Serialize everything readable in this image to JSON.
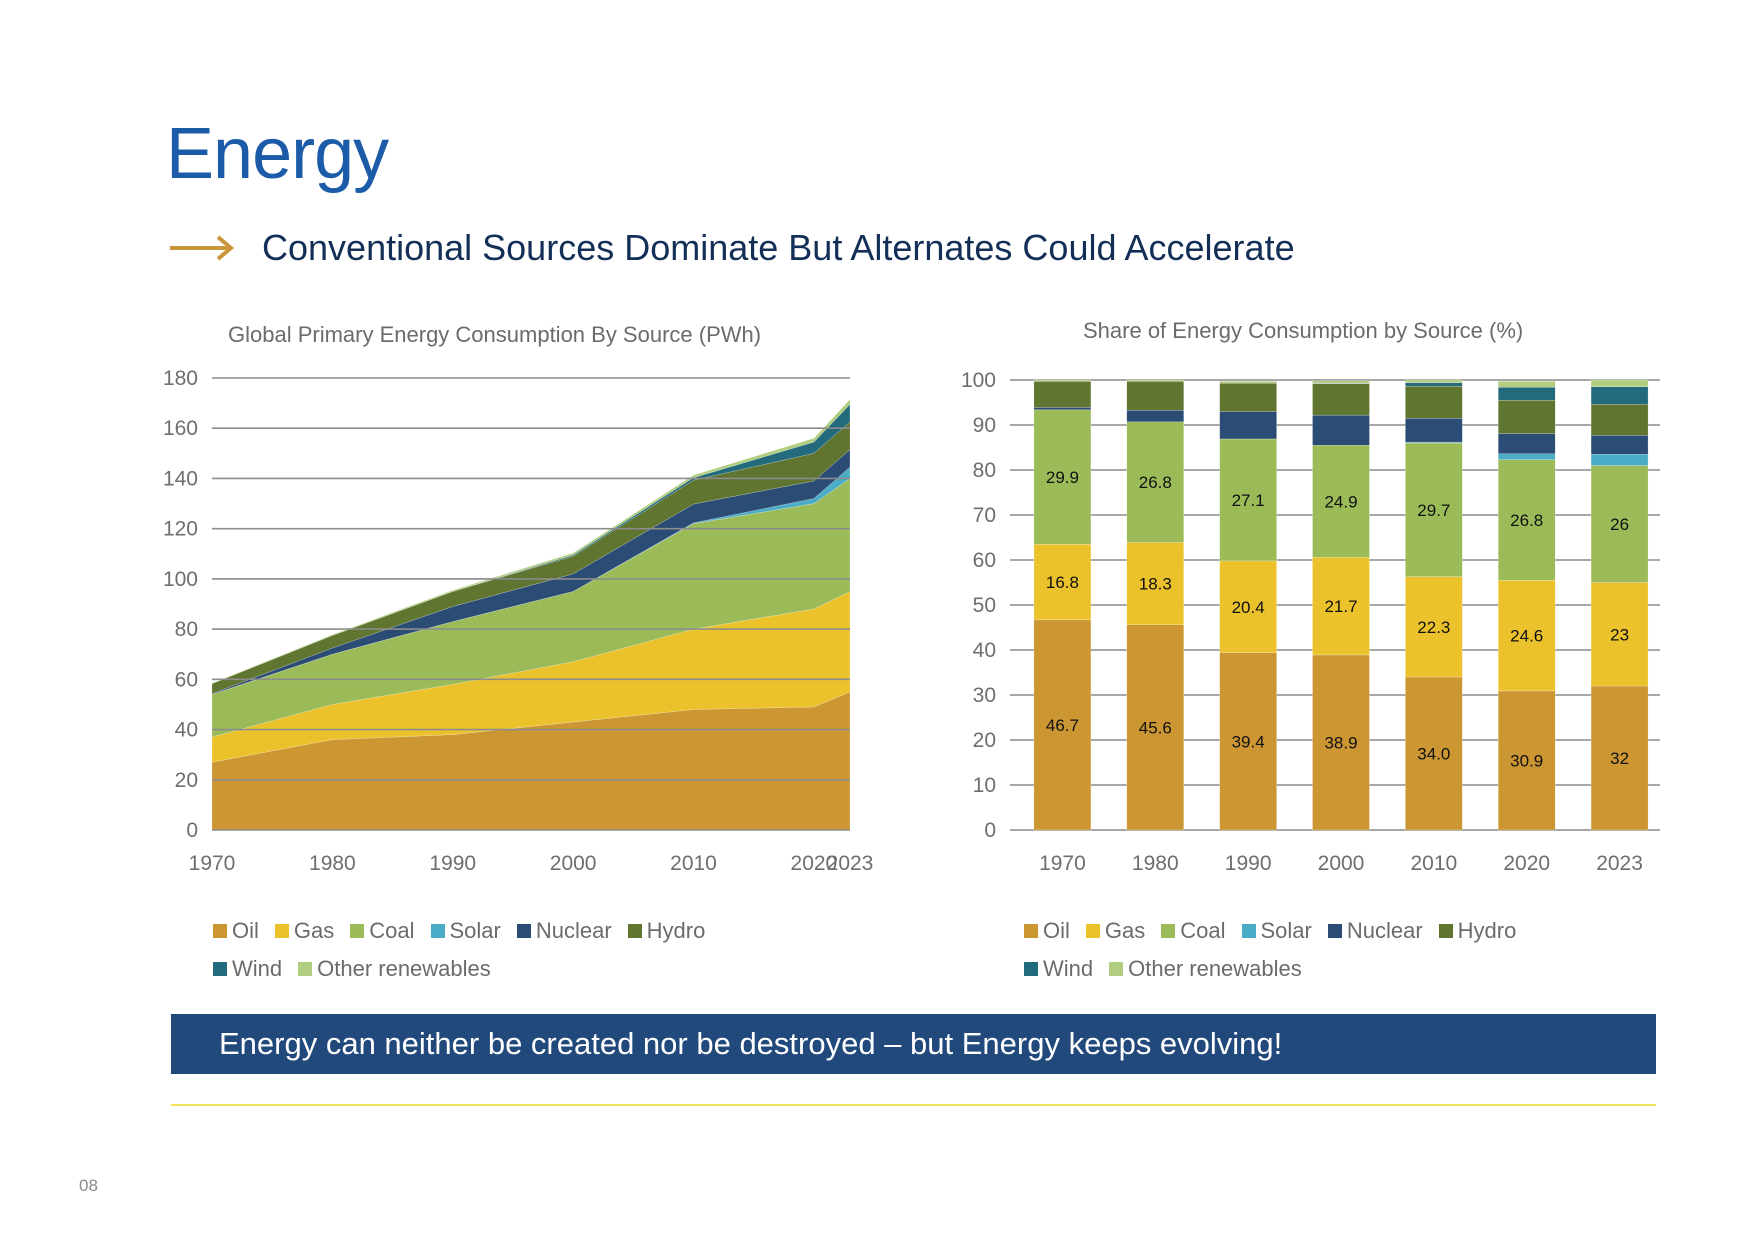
{
  "page": {
    "title": "Energy",
    "subtitle": "Conventional Sources Dominate But Alternates Could Accelerate",
    "banner": "Energy can neither be created nor be destroyed – but Energy keeps evolving!",
    "page_number": "08",
    "colors": {
      "title": "#1b5ba8",
      "subtitle": "#132f57",
      "arrow": "#c9963a",
      "banner_bg": "#21497c",
      "rule": "#f2e35a"
    }
  },
  "series_colors": {
    "Oil": "#cc9633",
    "Gas": "#ebc22b",
    "Coal": "#9bbb59",
    "Solar": "#4aacc6",
    "Nuclear": "#2b4c74",
    "Hydro": "#5f7530",
    "Wind": "#236a7c",
    "Other renewables": "#b1cd80"
  },
  "legend": [
    "Oil",
    "Gas",
    "Coal",
    "Solar",
    "Nuclear",
    "Hydro",
    "Wind",
    "Other renewables"
  ],
  "chart_data": [
    {
      "type": "area",
      "stacked": true,
      "title": "Global Primary Energy Consumption By Source (PWh)",
      "xlabel": "",
      "ylabel": "",
      "x": [
        "1970",
        "1980",
        "1990",
        "2000",
        "2010",
        "2020",
        "2023"
      ],
      "ylim": [
        0,
        180
      ],
      "yticks": [
        0,
        20,
        40,
        60,
        80,
        100,
        120,
        140,
        160,
        180
      ],
      "grid": true,
      "legend_position": "bottom",
      "series": [
        {
          "name": "Oil",
          "values": [
            27,
            36,
            38,
            43,
            48,
            49,
            55
          ]
        },
        {
          "name": "Gas",
          "values": [
            10,
            14,
            20,
            24,
            32,
            39,
            40
          ]
        },
        {
          "name": "Coal",
          "values": [
            17,
            20,
            25,
            28,
            42,
            42,
            45
          ]
        },
        {
          "name": "Solar",
          "values": [
            0,
            0,
            0,
            0,
            0.3,
            2,
            4.5
          ]
        },
        {
          "name": "Nuclear",
          "values": [
            0.3,
            2.5,
            6,
            7,
            7.5,
            7,
            7
          ]
        },
        {
          "name": "Hydro",
          "values": [
            4,
            5,
            6,
            7,
            9.5,
            11,
            11
          ]
        },
        {
          "name": "Wind",
          "values": [
            0,
            0,
            0,
            0.5,
            1,
            4.5,
            7
          ]
        },
        {
          "name": "Other renewables",
          "values": [
            0.2,
            0.3,
            0.5,
            0.8,
            1,
            1.5,
            2
          ]
        }
      ]
    },
    {
      "type": "bar",
      "stacked": true,
      "title": "Share of Energy Consumption by Source (%)",
      "xlabel": "",
      "ylabel": "",
      "categories": [
        "1970",
        "1980",
        "1990",
        "2000",
        "2010",
        "2020",
        "2023"
      ],
      "ylim": [
        0,
        100
      ],
      "yticks": [
        0,
        10,
        20,
        30,
        40,
        50,
        60,
        70,
        80,
        90,
        100
      ],
      "grid": true,
      "legend_position": "bottom",
      "series": [
        {
          "name": "Oil",
          "values": [
            46.7,
            45.6,
            39.4,
            38.9,
            34.0,
            30.9,
            32
          ],
          "labels": [
            "46.7",
            "45.6",
            "39.4",
            "38.9",
            "34.0",
            "30.9",
            "32"
          ]
        },
        {
          "name": "Gas",
          "values": [
            16.8,
            18.3,
            20.4,
            21.7,
            22.3,
            24.6,
            23
          ],
          "labels": [
            "16.8",
            "18.3",
            "20.4",
            "21.7",
            "22.3",
            "24.6",
            "23"
          ]
        },
        {
          "name": "Coal",
          "values": [
            29.9,
            26.8,
            27.1,
            24.9,
            29.7,
            26.8,
            26
          ],
          "labels": [
            "29.9",
            "26.8",
            "27.1",
            "24.9",
            "29.7",
            "26.8",
            "26"
          ]
        },
        {
          "name": "Solar",
          "values": [
            0,
            0,
            0,
            0,
            0.2,
            1.3,
            2.5
          ]
        },
        {
          "name": "Nuclear",
          "values": [
            0.5,
            2.6,
            6.1,
            6.7,
            5.3,
            4.5,
            4.2
          ]
        },
        {
          "name": "Hydro",
          "values": [
            5.8,
            6.4,
            6.3,
            7.0,
            7.1,
            7.4,
            6.9
          ]
        },
        {
          "name": "Wind",
          "values": [
            0,
            0,
            0,
            0.1,
            0.8,
            2.9,
            3.9
          ]
        },
        {
          "name": "Other renewables",
          "values": [
            0.3,
            0.3,
            0.4,
            0.5,
            0.6,
            1.3,
            1.5
          ]
        }
      ]
    }
  ]
}
